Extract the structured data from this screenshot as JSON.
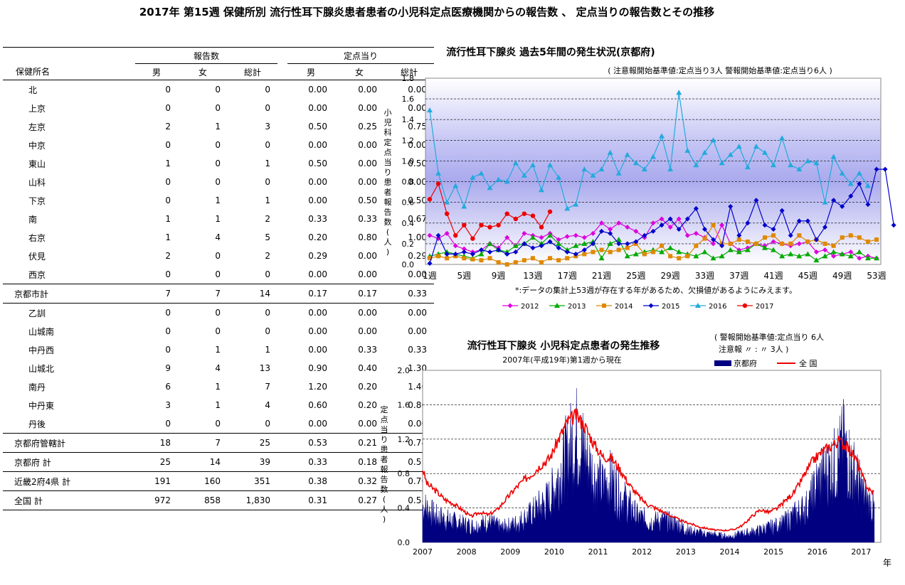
{
  "title": "2017年 第15週 保健所別 流行性耳下腺炎患者患者の小児科定点医療機関からの報告数 、 定点当りの報告数とその推移",
  "table": {
    "header_group1": "報告数",
    "header_group2": "定点当り",
    "col_name": "保健所名",
    "cols": [
      "男",
      "女",
      "総計",
      "男",
      "女",
      "総計"
    ],
    "rows": [
      {
        "name": "北",
        "kind": "sub0",
        "v": [
          "0",
          "0",
          "0",
          "0.00",
          "0.00",
          "0.00"
        ]
      },
      {
        "name": "上京",
        "kind": "sub0",
        "v": [
          "0",
          "0",
          "0",
          "0.00",
          "0.00",
          "0.00"
        ]
      },
      {
        "name": "左京",
        "kind": "sub0",
        "v": [
          "2",
          "1",
          "3",
          "0.50",
          "0.25",
          "0.75"
        ]
      },
      {
        "name": "中京",
        "kind": "sub0",
        "v": [
          "0",
          "0",
          "0",
          "0.00",
          "0.00",
          "0.00"
        ]
      },
      {
        "name": "東山",
        "kind": "sub0",
        "v": [
          "1",
          "0",
          "1",
          "0.50",
          "0.00",
          "0.50"
        ]
      },
      {
        "name": "山科",
        "kind": "sub0",
        "v": [
          "0",
          "0",
          "0",
          "0.00",
          "0.00",
          "0.00"
        ]
      },
      {
        "name": "下京",
        "kind": "sub0",
        "v": [
          "0",
          "1",
          "1",
          "0.00",
          "0.50",
          "0.50"
        ]
      },
      {
        "name": "南",
        "kind": "sub0",
        "v": [
          "1",
          "1",
          "2",
          "0.33",
          "0.33",
          "0.67"
        ]
      },
      {
        "name": "右京",
        "kind": "sub0",
        "v": [
          "1",
          "4",
          "5",
          "0.20",
          "0.80",
          "1.00"
        ]
      },
      {
        "name": "伏見",
        "kind": "sub0",
        "v": [
          "2",
          "0",
          "2",
          "0.29",
          "0.00",
          "0.29"
        ]
      },
      {
        "name": "西京",
        "kind": "sub0",
        "v": [
          "0",
          "0",
          "0",
          "0.00",
          "0.00",
          "0.00"
        ]
      },
      {
        "name": "京都市計",
        "kind": "agg",
        "v": [
          "7",
          "7",
          "14",
          "0.17",
          "0.17",
          "0.33"
        ]
      },
      {
        "name": "乙訓",
        "kind": "sub",
        "v": [
          "0",
          "0",
          "0",
          "0.00",
          "0.00",
          "0.00"
        ]
      },
      {
        "name": "山城南",
        "kind": "sub",
        "v": [
          "0",
          "0",
          "0",
          "0.00",
          "0.00",
          "0.00"
        ]
      },
      {
        "name": "中丹西",
        "kind": "sub",
        "v": [
          "0",
          "1",
          "1",
          "0.00",
          "0.33",
          "0.33"
        ]
      },
      {
        "name": "山城北",
        "kind": "sub",
        "v": [
          "9",
          "4",
          "13",
          "0.90",
          "0.40",
          "1.30"
        ]
      },
      {
        "name": "南丹",
        "kind": "sub",
        "v": [
          "6",
          "1",
          "7",
          "1.20",
          "0.20",
          "1.40"
        ]
      },
      {
        "name": "中丹東",
        "kind": "sub",
        "v": [
          "3",
          "1",
          "4",
          "0.60",
          "0.20",
          "0.80"
        ]
      },
      {
        "name": "丹後",
        "kind": "sub",
        "v": [
          "0",
          "0",
          "0",
          "0.00",
          "0.00",
          "0.00"
        ]
      },
      {
        "name": "京都府管轄計",
        "kind": "agg",
        "v": [
          "18",
          "7",
          "25",
          "0.53",
          "0.21",
          "0.74"
        ]
      },
      {
        "name": "京都府 計",
        "kind": "agg",
        "v": [
          "25",
          "14",
          "39",
          "0.33",
          "0.18",
          "0.51"
        ]
      },
      {
        "name": "近畿2府4県 計",
        "kind": "agg",
        "v": [
          "191",
          "160",
          "351",
          "0.38",
          "0.32",
          "0.70"
        ]
      },
      {
        "name": "全国 計",
        "kind": "agg",
        "v": [
          "972",
          "858",
          "1,830",
          "0.31",
          "0.27",
          "0.58"
        ]
      }
    ]
  },
  "chart_data": [
    {
      "type": "line",
      "title": "流行性耳下腺炎 過去5年間の発生状況(京都府)",
      "subtitle": "( 注意報開始基準値:定点当り3人 警報開始基準値:定点当り6人 )",
      "ylabel": "小児科定点当り患者報告数(人)",
      "note": "*:データの集計上53週が存在する年があるため、欠損値があるようにみえます。",
      "ylim": [
        0,
        1.8
      ],
      "yticks": [
        "0.0",
        "0.2",
        "0.4",
        "0.6",
        "0.8",
        "1.0",
        "1.2",
        "1.4",
        "1.6",
        "1.8"
      ],
      "xticks": [
        "1週",
        "5週",
        "9週",
        "13週",
        "17週",
        "21週",
        "25週",
        "29週",
        "33週",
        "37週",
        "41週",
        "45週",
        "49週",
        "53週"
      ],
      "plot_background": "#b0b0f0",
      "series": [
        {
          "name": "2012",
          "color": "#dd00dd",
          "marker": "diamond",
          "values": [
            0.28,
            0.25,
            0.3,
            0.18,
            0.15,
            0.12,
            0.14,
            0.2,
            0.16,
            0.26,
            0.18,
            0.3,
            0.28,
            0.26,
            0.3,
            0.24,
            0.27,
            0.28,
            0.26,
            0.3,
            0.4,
            0.34,
            0.4,
            0.36,
            0.32,
            0.26,
            0.4,
            0.44,
            0.36,
            0.44,
            0.28,
            0.3,
            0.26,
            0.2,
            0.38,
            0.2,
            0.14,
            0.16,
            0.2,
            0.18,
            0.22,
            0.2,
            0.18,
            0.2,
            0.22,
            0.12,
            0.14,
            0.08,
            0.1,
            0.12,
            0.06,
            0.08,
            0.06
          ]
        },
        {
          "name": "2013",
          "color": "#00aa00",
          "marker": "triangle",
          "values": [
            0.08,
            0.1,
            0.12,
            0.1,
            0.08,
            0.06,
            0.1,
            0.2,
            0.14,
            0.12,
            0.18,
            0.2,
            0.26,
            0.2,
            0.28,
            0.2,
            0.14,
            0.18,
            0.2,
            0.22,
            0.06,
            0.2,
            0.24,
            0.08,
            0.1,
            0.12,
            0.14,
            0.12,
            0.16,
            0.12,
            0.1,
            0.08,
            0.12,
            0.06,
            0.08,
            0.14,
            0.12,
            0.14,
            0.2,
            0.16,
            0.14,
            0.08,
            0.1,
            0.08,
            0.1,
            0.04,
            0.08,
            0.12,
            0.1,
            0.08,
            0.12,
            0.06,
            0.06
          ]
        },
        {
          "name": "2014",
          "color": "#e08800",
          "marker": "square",
          "values": [
            0.06,
            0.08,
            0.06,
            0.08,
            0.06,
            0.05,
            0.04,
            0.06,
            0.02,
            0.0,
            0.02,
            0.04,
            0.06,
            0.02,
            0.06,
            0.04,
            0.06,
            0.08,
            0.1,
            0.12,
            0.14,
            0.12,
            0.14,
            0.16,
            0.2,
            0.1,
            0.12,
            0.18,
            0.08,
            0.06,
            0.08,
            0.18,
            0.25,
            0.38,
            0.2,
            0.2,
            0.24,
            0.22,
            0.2,
            0.26,
            0.28,
            0.2,
            0.2,
            0.28,
            0.22,
            0.24,
            0.2,
            0.18,
            0.26,
            0.28,
            0.26,
            0.22,
            0.24
          ]
        },
        {
          "name": "2015",
          "color": "#0000cc",
          "marker": "diamond",
          "values": [
            0.01,
            0.28,
            0.1,
            0.1,
            0.12,
            0.1,
            0.14,
            0.12,
            0.14,
            0.1,
            0.12,
            0.2,
            0.16,
            0.18,
            0.22,
            0.16,
            0.12,
            0.1,
            0.14,
            0.2,
            0.32,
            0.3,
            0.2,
            0.2,
            0.22,
            0.28,
            0.32,
            0.38,
            0.44,
            0.34,
            0.44,
            0.54,
            0.34,
            0.24,
            0.18,
            0.56,
            0.28,
            0.4,
            0.62,
            0.38,
            0.34,
            0.52,
            0.28,
            0.42,
            0.42,
            0.24,
            0.36,
            0.62,
            0.56,
            0.66,
            0.78,
            0.58,
            0.92,
            0.92,
            0.38
          ]
        },
        {
          "name": "2016",
          "color": "#22aadd",
          "marker": "triangle",
          "values": [
            1.49,
            0.88,
            0.6,
            0.76,
            0.56,
            0.84,
            0.88,
            0.74,
            0.82,
            0.8,
            0.98,
            0.86,
            0.96,
            0.72,
            0.96,
            0.84,
            0.54,
            0.58,
            0.92,
            0.86,
            0.92,
            1.08,
            0.88,
            1.06,
            0.98,
            0.92,
            1.04,
            1.24,
            0.92,
            1.66,
            1.1,
            0.96,
            1.08,
            1.2,
            0.98,
            1.06,
            1.14,
            0.94,
            1.14,
            1.08,
            0.96,
            1.22,
            0.96,
            0.92,
            1.0,
            0.98,
            0.6,
            1.04,
            0.88,
            0.78,
            0.88,
            0.76
          ]
        },
        {
          "name": "2017",
          "color": "#ee0000",
          "marker": "circle",
          "values": [
            0.63,
            0.78,
            0.49,
            0.28,
            0.38,
            0.25,
            0.38,
            0.36,
            0.38,
            0.49,
            0.44,
            0.49,
            0.47,
            0.36,
            0.51
          ]
        }
      ]
    },
    {
      "type": "area",
      "title": "流行性耳下腺炎 小児科定点患者の発生推移",
      "subtitle": "2007年(平成19年)第1週から現在",
      "threshold_note_1": "( 警報開始基準値:定点当り 6人",
      "threshold_note_2": "注意報 〃 : 〃 3人 )",
      "ylabel": "定点当り患者報告数(人)",
      "xlabel": "年",
      "ylim": [
        0,
        2.0
      ],
      "yticks": [
        "0.0",
        "0.4",
        "0.8",
        "1.2",
        "1.6",
        "2.0"
      ],
      "xticks": [
        "2007",
        "2008",
        "2009",
        "2010",
        "2011",
        "2012",
        "2013",
        "2014",
        "2015",
        "2016",
        "2017"
      ],
      "series": [
        {
          "name": "京都府",
          "color": "#000080",
          "style": "area",
          "points": [
            [
              2007.0,
              0.5
            ],
            [
              2007.3,
              0.35
            ],
            [
              2007.6,
              0.3
            ],
            [
              2007.9,
              0.25
            ],
            [
              2008.2,
              0.22
            ],
            [
              2008.5,
              0.28
            ],
            [
              2008.8,
              0.2
            ],
            [
              2009.1,
              0.25
            ],
            [
              2009.4,
              0.35
            ],
            [
              2009.7,
              0.5
            ],
            [
              2009.9,
              0.6
            ],
            [
              2010.1,
              0.9
            ],
            [
              2010.3,
              1.2
            ],
            [
              2010.5,
              1.45
            ],
            [
              2010.7,
              1.2
            ],
            [
              2010.9,
              0.9
            ],
            [
              2011.1,
              0.75
            ],
            [
              2011.3,
              0.85
            ],
            [
              2011.5,
              0.65
            ],
            [
              2011.7,
              0.5
            ],
            [
              2011.9,
              0.35
            ],
            [
              2012.2,
              0.28
            ],
            [
              2012.5,
              0.3
            ],
            [
              2012.8,
              0.25
            ],
            [
              2013.1,
              0.15
            ],
            [
              2013.4,
              0.12
            ],
            [
              2013.7,
              0.1
            ],
            [
              2014.0,
              0.08
            ],
            [
              2014.3,
              0.12
            ],
            [
              2014.6,
              0.15
            ],
            [
              2014.9,
              0.2
            ],
            [
              2015.2,
              0.25
            ],
            [
              2015.5,
              0.38
            ],
            [
              2015.8,
              0.5
            ],
            [
              2016.0,
              0.8
            ],
            [
              2016.2,
              0.95
            ],
            [
              2016.4,
              1.05
            ],
            [
              2016.6,
              1.3
            ],
            [
              2016.8,
              1.0
            ],
            [
              2017.0,
              0.7
            ],
            [
              2017.15,
              0.55
            ],
            [
              2017.3,
              0.45
            ]
          ]
        },
        {
          "name": "全 国",
          "color": "#ee0000",
          "style": "line",
          "points": [
            [
              2007.0,
              0.85
            ],
            [
              2007.1,
              0.68
            ],
            [
              2007.3,
              0.6
            ],
            [
              2007.5,
              0.5
            ],
            [
              2007.7,
              0.45
            ],
            [
              2007.9,
              0.38
            ],
            [
              2008.1,
              0.3
            ],
            [
              2008.3,
              0.35
            ],
            [
              2008.5,
              0.32
            ],
            [
              2008.7,
              0.38
            ],
            [
              2008.9,
              0.5
            ],
            [
              2009.1,
              0.62
            ],
            [
              2009.3,
              0.72
            ],
            [
              2009.5,
              0.8
            ],
            [
              2009.7,
              0.9
            ],
            [
              2009.9,
              0.98
            ],
            [
              2010.1,
              1.2
            ],
            [
              2010.3,
              1.4
            ],
            [
              2010.5,
              1.48
            ],
            [
              2010.7,
              1.35
            ],
            [
              2010.9,
              1.15
            ],
            [
              2011.1,
              1.0
            ],
            [
              2011.3,
              0.98
            ],
            [
              2011.5,
              0.85
            ],
            [
              2011.7,
              0.68
            ],
            [
              2011.9,
              0.55
            ],
            [
              2012.1,
              0.45
            ],
            [
              2012.3,
              0.4
            ],
            [
              2012.5,
              0.35
            ],
            [
              2012.7,
              0.3
            ],
            [
              2012.9,
              0.25
            ],
            [
              2013.1,
              0.22
            ],
            [
              2013.3,
              0.18
            ],
            [
              2013.5,
              0.16
            ],
            [
              2013.7,
              0.14
            ],
            [
              2013.9,
              0.14
            ],
            [
              2014.1,
              0.15
            ],
            [
              2014.3,
              0.2
            ],
            [
              2014.5,
              0.3
            ],
            [
              2014.7,
              0.38
            ],
            [
              2014.9,
              0.35
            ],
            [
              2015.1,
              0.4
            ],
            [
              2015.3,
              0.5
            ],
            [
              2015.5,
              0.6
            ],
            [
              2015.7,
              0.78
            ],
            [
              2015.9,
              0.95
            ],
            [
              2016.1,
              1.05
            ],
            [
              2016.3,
              1.12
            ],
            [
              2016.5,
              1.18
            ],
            [
              2016.7,
              1.1
            ],
            [
              2016.9,
              0.95
            ],
            [
              2017.0,
              0.8
            ],
            [
              2017.1,
              0.68
            ],
            [
              2017.2,
              0.6
            ],
            [
              2017.3,
              0.58
            ]
          ]
        }
      ]
    }
  ]
}
